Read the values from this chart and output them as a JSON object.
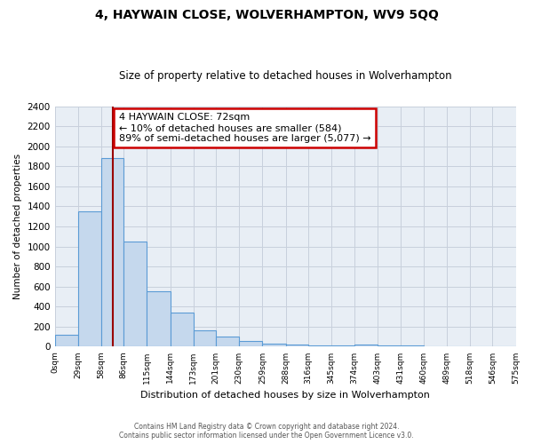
{
  "title": "4, HAYWAIN CLOSE, WOLVERHAMPTON, WV9 5QQ",
  "subtitle": "Size of property relative to detached houses in Wolverhampton",
  "xlabel": "Distribution of detached houses by size in Wolverhampton",
  "ylabel": "Number of detached properties",
  "bar_values": [
    120,
    1350,
    1880,
    1050,
    550,
    340,
    160,
    105,
    60,
    30,
    20,
    15,
    10,
    20,
    10,
    10,
    5,
    5,
    5,
    5
  ],
  "bin_edges": [
    0,
    29,
    58,
    86,
    115,
    144,
    173,
    201,
    230,
    259,
    288,
    316,
    345,
    374,
    403,
    431,
    460,
    489,
    518,
    546,
    575
  ],
  "tick_labels": [
    "0sqm",
    "29sqm",
    "58sqm",
    "86sqm",
    "115sqm",
    "144sqm",
    "173sqm",
    "201sqm",
    "230sqm",
    "259sqm",
    "288sqm",
    "316sqm",
    "345sqm",
    "374sqm",
    "403sqm",
    "431sqm",
    "460sqm",
    "489sqm",
    "518sqm",
    "546sqm",
    "575sqm"
  ],
  "bar_color": "#c5d8ed",
  "bar_edge_color": "#5b9bd5",
  "grid_color": "#c8d0dc",
  "background_color": "#e8eef5",
  "fig_background": "#ffffff",
  "vline_x": 72,
  "vline_color": "#990000",
  "annotation_title": "4 HAYWAIN CLOSE: 72sqm",
  "annotation_line1": "← 10% of detached houses are smaller (584)",
  "annotation_line2": "89% of semi-detached houses are larger (5,077) →",
  "annotation_box_facecolor": "#ffffff",
  "annotation_box_edgecolor": "#cc0000",
  "ylim": [
    0,
    2400
  ],
  "yticks": [
    0,
    200,
    400,
    600,
    800,
    1000,
    1200,
    1400,
    1600,
    1800,
    2000,
    2200,
    2400
  ],
  "footnote1": "Contains HM Land Registry data © Crown copyright and database right 2024.",
  "footnote2": "Contains public sector information licensed under the Open Government Licence v3.0."
}
